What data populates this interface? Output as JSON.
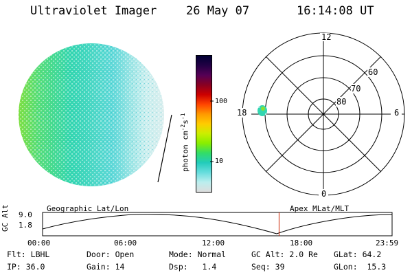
{
  "header": {
    "instrument": "Ultraviolet Imager",
    "date": "26 May 07",
    "time": "16:14:08 UT"
  },
  "colorbar": {
    "unit_label": "photon cm",
    "unit_exp1": "-2",
    "unit_mid": "s",
    "unit_exp2": "-1",
    "tick_100": "100",
    "tick_10": "10",
    "colors": [
      "#000033",
      "#220044",
      "#550055",
      "#880022",
      "#cc0000",
      "#ff4400",
      "#ff9900",
      "#ffcc00",
      "#ccee00",
      "#88ee00",
      "#33dd66",
      "#22ccbb",
      "#66dddd",
      "#bbeeee",
      "#dddddd"
    ]
  },
  "polar": {
    "mlt_labels": {
      "top": "12",
      "right": "6",
      "bottom": "0",
      "left": "18"
    },
    "lat_labels": [
      "60",
      "70",
      "80"
    ]
  },
  "timeline": {
    "left_title": "Geographic Lat/Lon",
    "right_title": "Apex MLat/MLT",
    "ylabel": "GC Alt",
    "y_top": "9.0",
    "y_bottom": "1.8",
    "x_ticks": [
      "00:00",
      "06:00",
      "12:00",
      "18:00",
      "23:59"
    ],
    "marker_time_hours": 16.24
  },
  "info": {
    "flt_label": "Flt:",
    "flt_value": "LBHL",
    "ip_label": "IP:",
    "ip_value": "36.0",
    "door_label": "Door:",
    "door_value": "Open",
    "gain_label": "Gain:",
    "gain_value": "14",
    "mode_label": "Mode:",
    "mode_value": "Normal",
    "dsp_label": "Dsp:",
    "dsp_value": "1.4",
    "gcalt_label": "GC Alt:",
    "gcalt_value": "2.0 Re",
    "seq_label": "Seq:",
    "seq_value": "39",
    "glat_label": "GLat:",
    "glat_value": "64.2",
    "glon_label": "GLon:",
    "glon_value": "15.3"
  }
}
